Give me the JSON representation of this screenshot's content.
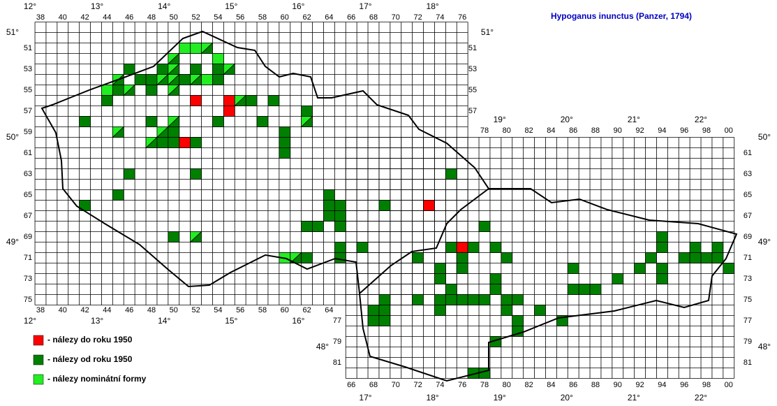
{
  "title": "Hypoganus inunctus (Panzer, 1794)",
  "legend": [
    "- nálezy do roku 1950",
    "- nálezy od roku 1950",
    "- nálezy nominátní formy"
  ],
  "columns": [
    "38",
    "40",
    "42",
    "44",
    "46",
    "48",
    "50",
    "52",
    "54",
    "56",
    "58",
    "60",
    "62",
    "64",
    "66",
    "68",
    "70",
    "72",
    "74",
    "76",
    "78",
    "80",
    "82",
    "84",
    "86",
    "88",
    "90",
    "92",
    "94",
    "96",
    "98",
    "00"
  ],
  "rows": [
    "51",
    "53",
    "55",
    "57",
    "59",
    "61",
    "63",
    "65",
    "67",
    "69",
    "71",
    "73",
    "75",
    "77",
    "79",
    "81"
  ],
  "longitudes": [
    "12°",
    "13°",
    "14°",
    "15°",
    "16°",
    "17°",
    "18°",
    "19°",
    "20°",
    "21°",
    "22°"
  ],
  "latitudes": [
    "51°",
    "50°",
    "49°",
    "48°"
  ]
}
